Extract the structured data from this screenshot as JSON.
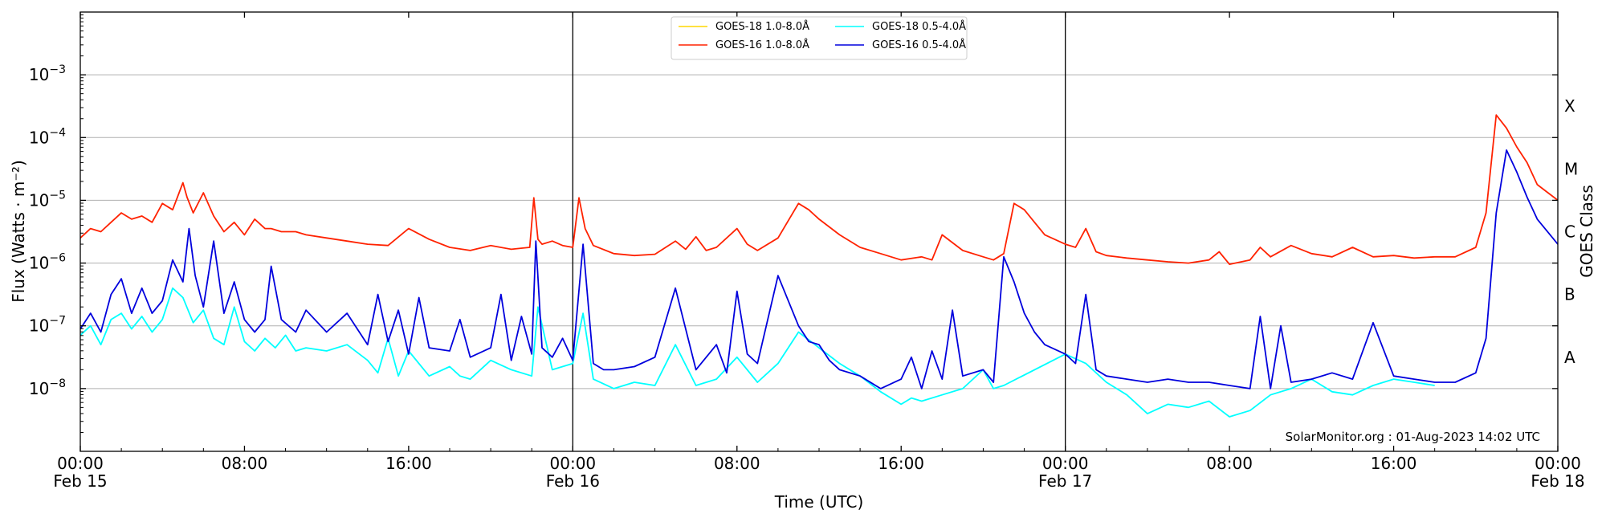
{
  "chart_data": {
    "type": "line",
    "title": "",
    "xlabel": "Time (UTC)",
    "ylabel": "Flux (Watts · m⁻²)",
    "ylabel_right": "GOES Class",
    "yscale": "log",
    "x_unit": "hours since Feb 15 00:00 UTC",
    "xlim": [
      0,
      72
    ],
    "ylim_exponent": [
      -9,
      -2
    ],
    "x_ticks": [
      {
        "x": 0,
        "label": "00:00",
        "sub": "Feb 15"
      },
      {
        "x": 8,
        "label": "08:00",
        "sub": ""
      },
      {
        "x": 16,
        "label": "16:00",
        "sub": ""
      },
      {
        "x": 24,
        "label": "00:00",
        "sub": "Feb 16"
      },
      {
        "x": 32,
        "label": "08:00",
        "sub": ""
      },
      {
        "x": 40,
        "label": "16:00",
        "sub": ""
      },
      {
        "x": 48,
        "label": "00:00",
        "sub": "Feb 17"
      },
      {
        "x": 56,
        "label": "08:00",
        "sub": ""
      },
      {
        "x": 64,
        "label": "16:00",
        "sub": ""
      },
      {
        "x": 72,
        "label": "00:00",
        "sub": "Feb 18"
      }
    ],
    "y_ticks": [
      {
        "exp": -8,
        "label": "10",
        "sup": "−8"
      },
      {
        "exp": -7,
        "label": "10",
        "sup": "−7"
      },
      {
        "exp": -6,
        "label": "10",
        "sup": "−6"
      },
      {
        "exp": -5,
        "label": "10",
        "sup": "−5"
      },
      {
        "exp": -4,
        "label": "10",
        "sup": "−4"
      },
      {
        "exp": -3,
        "label": "10",
        "sup": "−3"
      }
    ],
    "class_labels": [
      {
        "exp": -7.5,
        "label": "A"
      },
      {
        "exp": -6.5,
        "label": "B"
      },
      {
        "exp": -5.5,
        "label": "C"
      },
      {
        "exp": -4.5,
        "label": "M"
      },
      {
        "exp": -3.5,
        "label": "X"
      }
    ],
    "day_boundaries": [
      24,
      48
    ],
    "grid": true,
    "legend_position": "top-center",
    "credit": "SolarMonitor.org : 01-Aug-2023 14:02 UTC",
    "series": [
      {
        "name": "GOES-18 1.0-8.0Å",
        "color": "#ffd700",
        "x": [],
        "log10_flux": []
      },
      {
        "name": "GOES-16 1.0-8.0Å",
        "color": "#ff2200",
        "x": [
          0,
          0.5,
          1,
          1.5,
          2,
          2.5,
          3,
          3.5,
          4,
          4.5,
          5,
          5.2,
          5.5,
          6,
          6.5,
          7,
          7.5,
          8,
          8.5,
          9,
          9.3,
          9.8,
          10.5,
          11,
          12,
          13,
          14,
          15,
          16,
          17,
          18,
          19,
          20,
          21,
          21.9,
          22.1,
          22.3,
          22.5,
          23,
          23.5,
          24,
          24.3,
          24.6,
          25,
          26,
          27,
          28,
          29,
          29.5,
          30,
          30.5,
          31,
          32,
          32.5,
          33,
          34,
          35,
          35.5,
          36,
          37,
          38,
          39,
          40,
          41,
          41.5,
          42,
          43,
          44,
          44.5,
          45,
          45.5,
          46,
          46.5,
          47,
          48,
          48.5,
          49,
          49.5,
          50,
          51,
          52,
          53,
          54,
          55,
          55.5,
          56,
          57,
          57.5,
          58,
          59,
          60,
          61,
          62,
          63,
          64,
          65,
          66,
          67,
          68,
          68.5,
          69,
          69.5,
          70,
          70.5,
          71,
          72
        ],
        "log10_flux": [
          -5.6,
          -5.45,
          -5.5,
          -5.35,
          -5.2,
          -5.3,
          -5.25,
          -5.35,
          -5.05,
          -5.15,
          -4.72,
          -4.95,
          -5.2,
          -4.88,
          -5.25,
          -5.5,
          -5.35,
          -5.55,
          -5.3,
          -5.45,
          -5.45,
          -5.5,
          -5.5,
          -5.55,
          -5.6,
          -5.65,
          -5.7,
          -5.72,
          -5.45,
          -5.62,
          -5.75,
          -5.8,
          -5.72,
          -5.78,
          -5.75,
          -4.96,
          -5.62,
          -5.7,
          -5.65,
          -5.72,
          -5.75,
          -4.96,
          -5.45,
          -5.72,
          -5.85,
          -5.88,
          -5.86,
          -5.65,
          -5.78,
          -5.58,
          -5.8,
          -5.75,
          -5.45,
          -5.7,
          -5.8,
          -5.6,
          -5.05,
          -5.15,
          -5.3,
          -5.55,
          -5.75,
          -5.85,
          -5.95,
          -5.9,
          -5.95,
          -5.55,
          -5.8,
          -5.9,
          -5.95,
          -5.85,
          -5.05,
          -5.15,
          -5.35,
          -5.55,
          -5.7,
          -5.75,
          -5.45,
          -5.82,
          -5.88,
          -5.92,
          -5.95,
          -5.98,
          -6.0,
          -5.95,
          -5.82,
          -6.02,
          -5.95,
          -5.75,
          -5.9,
          -5.72,
          -5.85,
          -5.9,
          -5.75,
          -5.9,
          -5.88,
          -5.92,
          -5.9,
          -5.9,
          -5.75,
          -5.2,
          -3.64,
          -3.85,
          -4.15,
          -4.4,
          -4.75,
          -5.0
        ]
      },
      {
        "name": "GOES-18 0.5-4.0Å",
        "color": "#00ffff",
        "x": [
          0,
          0.5,
          1,
          1.5,
          2,
          2.5,
          3,
          3.5,
          4,
          4.5,
          5,
          5.5,
          6,
          6.5,
          7,
          7.5,
          8,
          8.5,
          9,
          9.5,
          10,
          10.5,
          11,
          12,
          13,
          14,
          14.5,
          15,
          15.5,
          16,
          17,
          18,
          18.5,
          19,
          20,
          21,
          22,
          22.3,
          23,
          24,
          24.5,
          25,
          26,
          27,
          28,
          29,
          30,
          31,
          32,
          33,
          34,
          35,
          36,
          37,
          38,
          39,
          40,
          40.5,
          41,
          42,
          43,
          44,
          44.5,
          45,
          48,
          49,
          50,
          51,
          52,
          53,
          54,
          55,
          56,
          57,
          58,
          59,
          60,
          61,
          62,
          63,
          64,
          65,
          66
        ],
        "log10_flux": [
          -7.15,
          -7.0,
          -7.3,
          -6.9,
          -6.8,
          -7.05,
          -6.85,
          -7.1,
          -6.9,
          -6.4,
          -6.55,
          -6.95,
          -6.75,
          -7.2,
          -7.3,
          -6.7,
          -7.25,
          -7.4,
          -7.2,
          -7.35,
          -7.15,
          -7.4,
          -7.35,
          -7.4,
          -7.3,
          -7.55,
          -7.75,
          -7.2,
          -7.8,
          -7.4,
          -7.8,
          -7.65,
          -7.8,
          -7.85,
          -7.55,
          -7.7,
          -7.8,
          -6.7,
          -7.7,
          -7.6,
          -6.8,
          -7.85,
          -8.0,
          -7.9,
          -7.95,
          -7.3,
          -7.95,
          -7.85,
          -7.5,
          -7.9,
          -7.6,
          -7.1,
          -7.35,
          -7.6,
          -7.8,
          -8.05,
          -8.25,
          -8.15,
          -8.2,
          -8.1,
          -8.0,
          -7.7,
          -8.0,
          -7.95,
          -7.45,
          -7.6,
          -7.9,
          -8.1,
          -8.4,
          -8.25,
          -8.3,
          -8.2,
          -8.45,
          -8.35,
          -8.1,
          -8.0,
          -7.85,
          -8.05,
          -8.1,
          -7.95,
          -7.85,
          -7.9,
          -7.95
        ]
      },
      {
        "name": "GOES-16 0.5-4.0Å",
        "color": "#0000dd",
        "x": [
          0,
          0.5,
          1,
          1.5,
          2,
          2.5,
          3,
          3.5,
          4,
          4.5,
          5,
          5.3,
          5.6,
          6,
          6.5,
          7,
          7.5,
          8,
          8.5,
          9,
          9.3,
          9.8,
          10.5,
          11,
          12,
          13,
          14,
          14.5,
          15,
          15.5,
          16,
          16.5,
          17,
          18,
          18.5,
          19,
          20,
          20.5,
          21,
          21.5,
          22,
          22.2,
          22.5,
          23,
          23.5,
          24,
          24.5,
          25,
          25.5,
          26,
          27,
          28,
          29,
          30,
          31,
          31.5,
          32,
          32.5,
          33,
          34,
          35,
          35.5,
          36,
          36.5,
          37,
          38,
          39,
          40,
          40.5,
          41,
          41.5,
          42,
          42.5,
          43,
          44,
          44.5,
          45,
          45.5,
          46,
          46.5,
          47,
          48,
          48.5,
          49,
          49.5,
          50,
          51,
          52,
          53,
          54,
          55,
          56,
          57,
          57.5,
          58,
          58.5,
          59,
          60,
          61,
          62,
          63,
          64,
          65,
          66,
          67,
          68,
          68.5,
          69,
          69.5,
          70,
          70.5,
          71,
          72
        ],
        "log10_flux": [
          -7.05,
          -6.8,
          -7.1,
          -6.5,
          -6.25,
          -6.8,
          -6.4,
          -6.8,
          -6.6,
          -5.95,
          -6.3,
          -5.45,
          -6.2,
          -6.7,
          -5.65,
          -6.8,
          -6.3,
          -6.9,
          -7.1,
          -6.9,
          -6.05,
          -6.9,
          -7.1,
          -6.75,
          -7.1,
          -6.8,
          -7.3,
          -6.5,
          -7.25,
          -6.75,
          -7.45,
          -6.55,
          -7.35,
          -7.4,
          -6.9,
          -7.5,
          -7.35,
          -6.5,
          -7.55,
          -6.85,
          -7.45,
          -5.65,
          -7.35,
          -7.5,
          -7.2,
          -7.55,
          -5.7,
          -7.6,
          -7.7,
          -7.7,
          -7.65,
          -7.5,
          -6.4,
          -7.7,
          -7.3,
          -7.75,
          -6.45,
          -7.45,
          -7.6,
          -6.2,
          -7.0,
          -7.25,
          -7.3,
          -7.55,
          -7.7,
          -7.8,
          -8.0,
          -7.85,
          -7.5,
          -8.0,
          -7.4,
          -7.85,
          -6.75,
          -7.8,
          -7.7,
          -7.9,
          -5.9,
          -6.3,
          -6.8,
          -7.1,
          -7.3,
          -7.45,
          -7.6,
          -6.5,
          -7.7,
          -7.8,
          -7.85,
          -7.9,
          -7.85,
          -7.9,
          -7.9,
          -7.95,
          -8.0,
          -6.85,
          -8.0,
          -7.0,
          -7.9,
          -7.85,
          -7.75,
          -7.85,
          -6.95,
          -7.8,
          -7.85,
          -7.9,
          -7.9,
          -7.75,
          -7.2,
          -5.2,
          -4.2,
          -4.55,
          -4.95,
          -5.3,
          -5.7,
          -6.05
        ]
      }
    ]
  }
}
